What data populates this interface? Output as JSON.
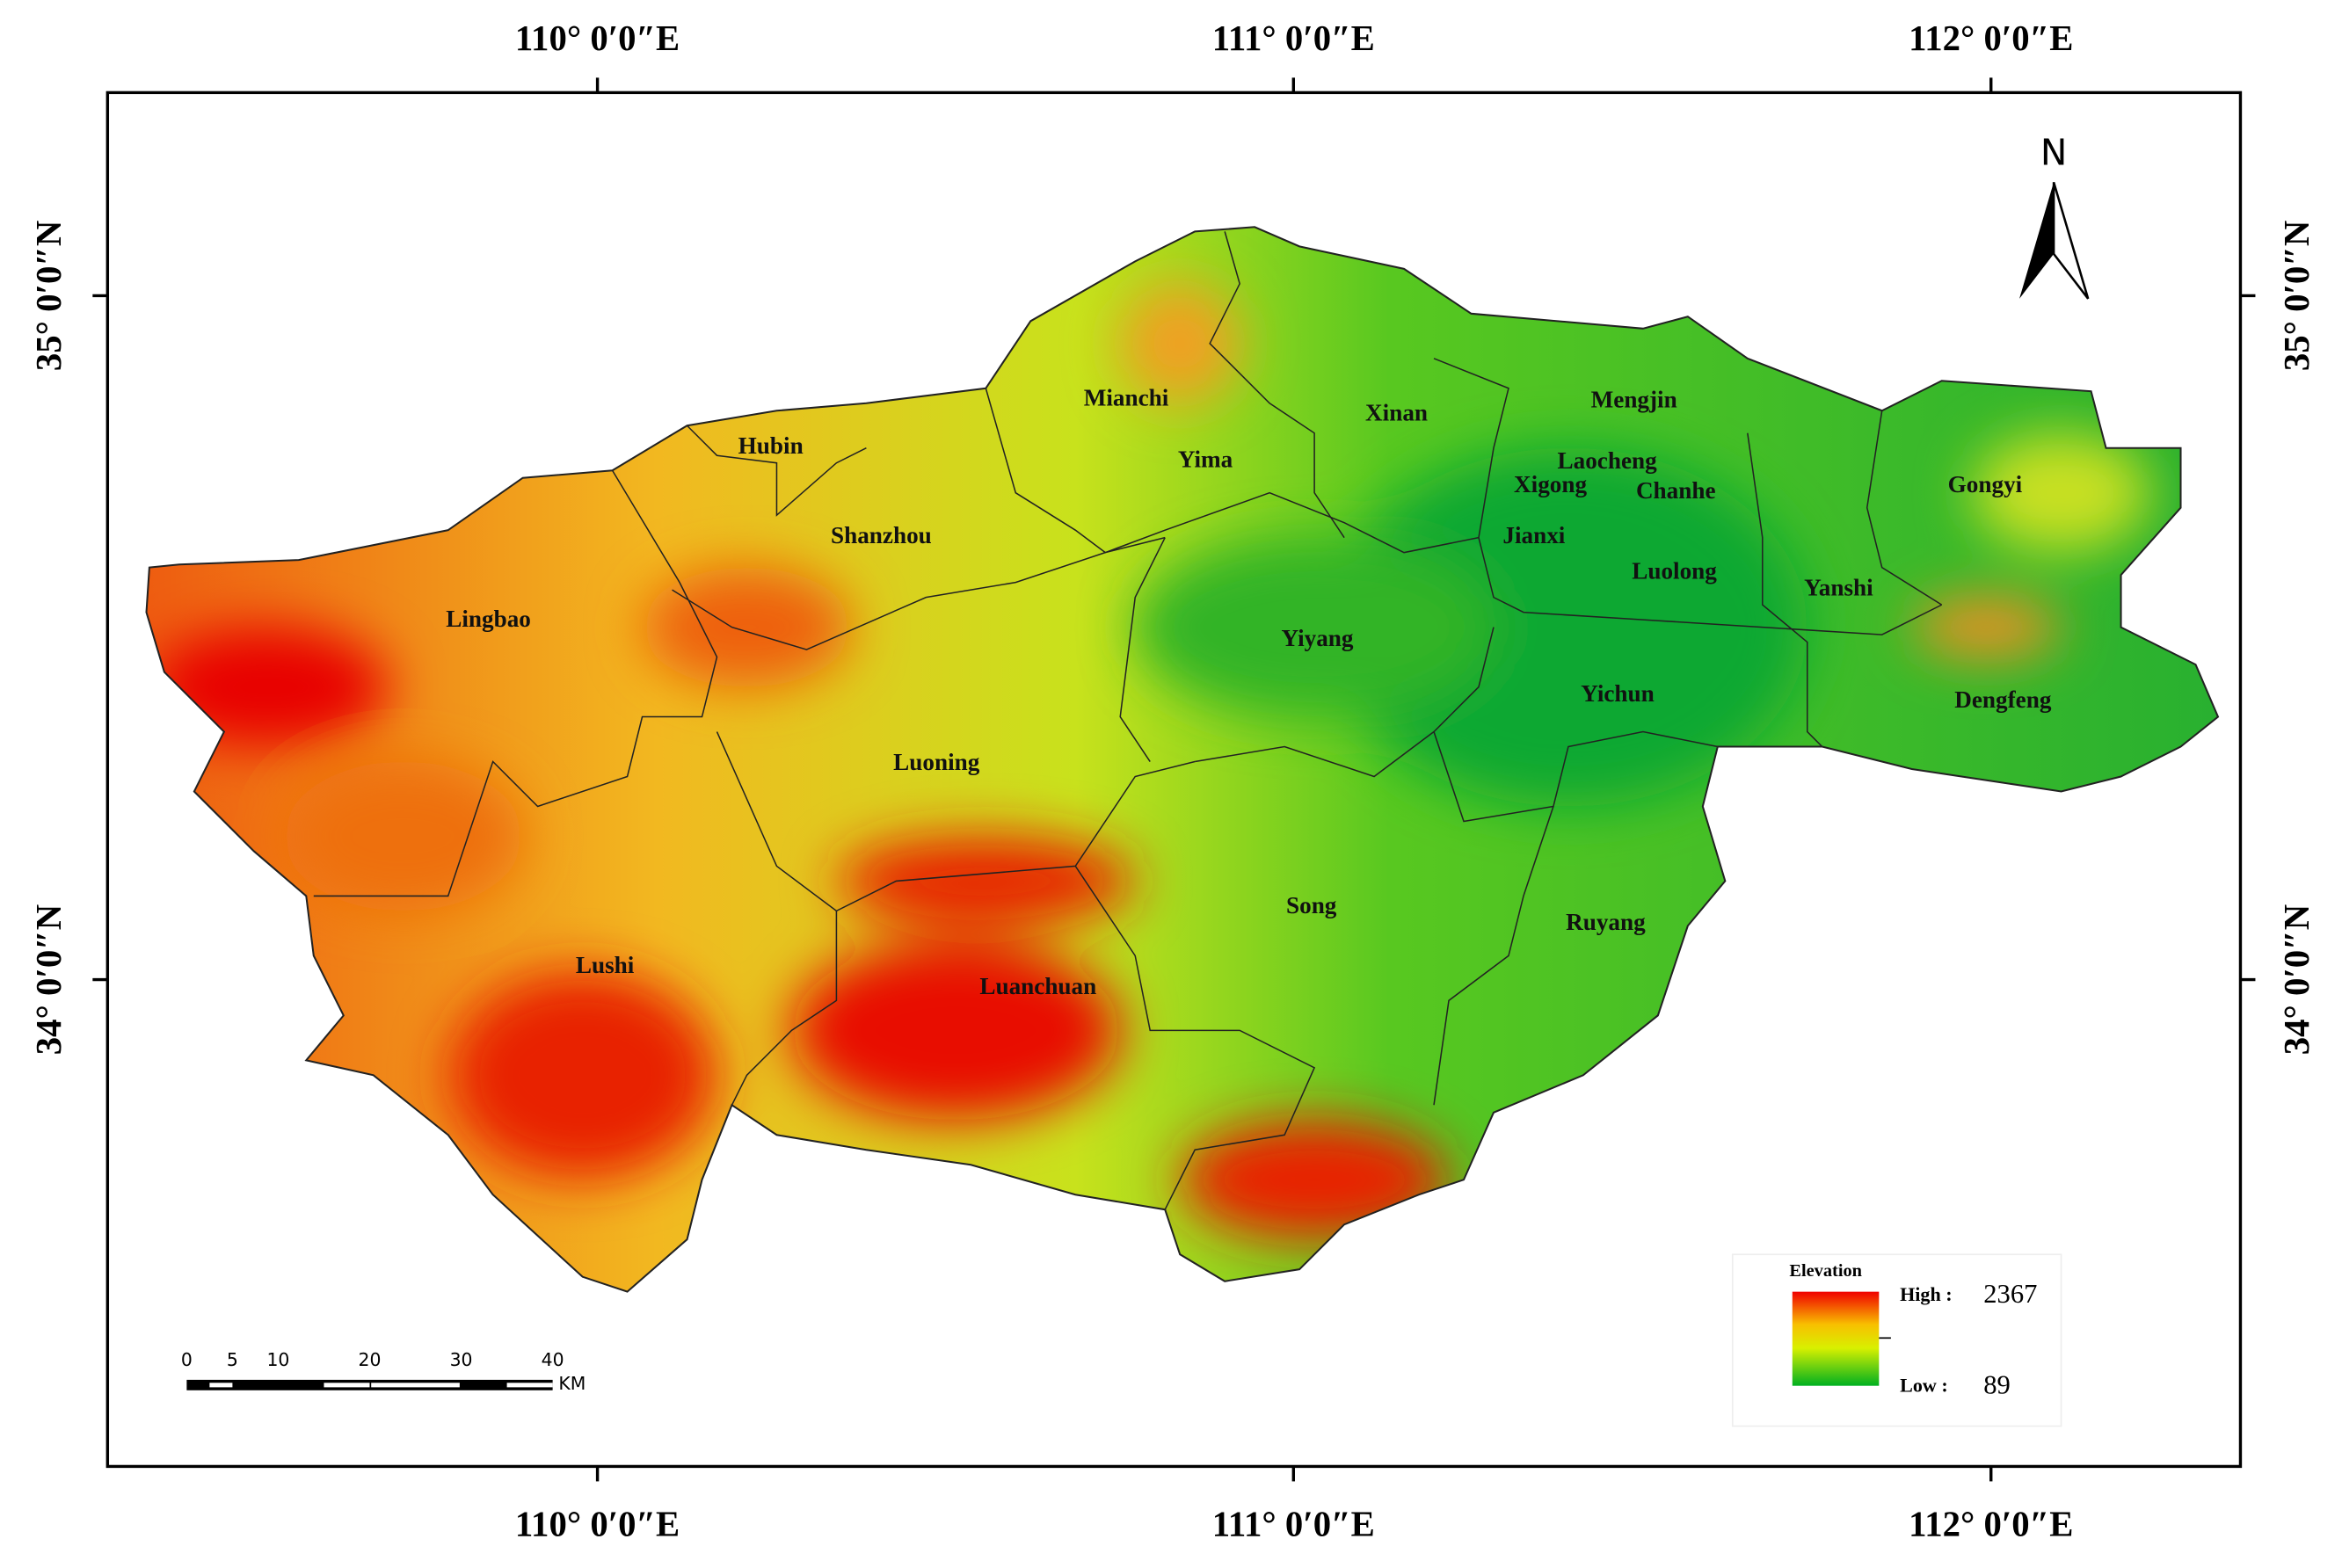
{
  "map": {
    "graticule": {
      "top": [
        "110° 0′0″E",
        "111° 0′0″E",
        "112° 0′0″E"
      ],
      "bottom": [
        "110° 0′0″E",
        "111° 0′0″E",
        "112° 0′0″E"
      ],
      "left": [
        "35° 0′0″N",
        "34° 0′0″N"
      ],
      "right": [
        "35° 0′0″N",
        "34° 0′0″N"
      ]
    },
    "north_arrow": "N",
    "counties": [
      "Mianchi",
      "Xinan",
      "Mengjin",
      "Hubin",
      "Yima",
      "Laocheng",
      "Xigong",
      "Chanhe",
      "Gongyi",
      "Shanzhou",
      "Jianxi",
      "Luolong",
      "Yanshi",
      "Lingbao",
      "Yiyang",
      "Yichun",
      "Dengfeng",
      "Luoning",
      "Song",
      "Ruyang",
      "Lushi",
      "Luanchuan"
    ],
    "legend": {
      "title": "Elevation",
      "high_label": "High :",
      "high_value": 2367,
      "low_label": "Low :",
      "low_value": 89
    },
    "scale_bar": {
      "ticks": [
        0,
        5,
        10,
        20,
        30,
        40
      ],
      "unit": "KM"
    }
  }
}
